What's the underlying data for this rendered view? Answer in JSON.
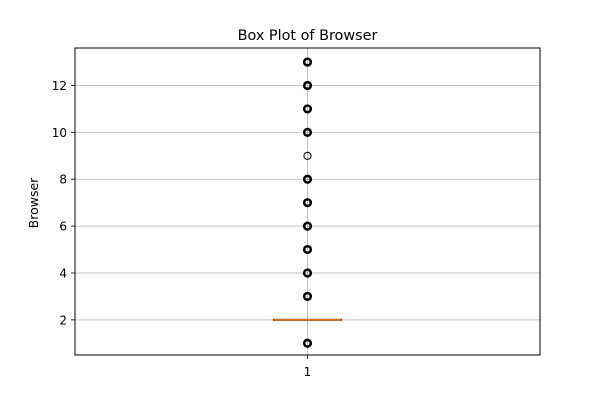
{
  "chart_data": {
    "type": "box",
    "title": "Box Plot of Browser",
    "xlabel": "",
    "ylabel": "Browser",
    "categories": [
      "1"
    ],
    "ylim": [
      0.5,
      13.6
    ],
    "yticks": [
      2,
      4,
      6,
      8,
      10,
      12
    ],
    "grid": true,
    "boxes": [
      {
        "category": "1",
        "q1": 2,
        "median": 2,
        "q3": 2,
        "whisker_low": 2,
        "whisker_high": 2,
        "outliers": [
          1,
          3,
          4,
          5,
          6,
          7,
          8,
          9,
          10,
          11,
          12,
          13
        ],
        "bold_outliers": [
          1,
          3,
          4,
          5,
          6,
          7,
          8,
          10,
          11,
          12,
          13
        ]
      }
    ],
    "colors": {
      "median": "#ff7f0e",
      "outlier_edge": "#000000",
      "grid": "#b0b0b0",
      "axes": "#000000"
    }
  }
}
